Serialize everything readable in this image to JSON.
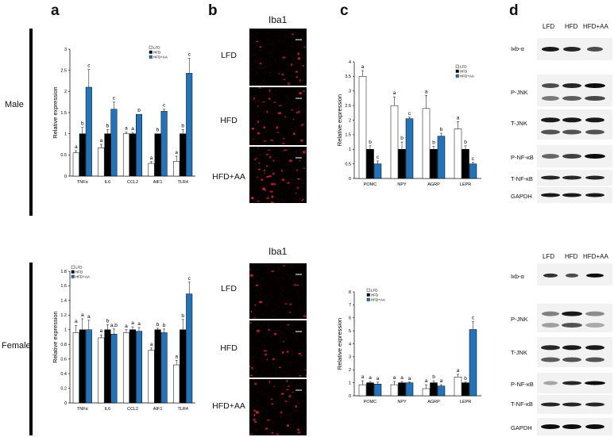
{
  "panels": {
    "a": "a",
    "b": "b",
    "c": "c",
    "d": "d"
  },
  "sex": {
    "male": "Male",
    "female": "Female"
  },
  "colors": {
    "LFD": "#ffffff",
    "HFD": "#000000",
    "HFD+AA": "#2473b8"
  },
  "legend": [
    "LFD",
    "HFD",
    "HFD+AA"
  ],
  "ylabel": "Relative expression",
  "iba": {
    "title": "Iba1",
    "conditions": [
      "LFD",
      "HFD",
      "HFD+AA"
    ]
  },
  "chart_data": [
    {
      "id": "a-male",
      "type": "bar",
      "ylabel": "Relative expression",
      "ylim": [
        0,
        3
      ],
      "yticks": [
        "0",
        "0.5",
        "1",
        "1.5",
        "2",
        "2.5",
        "3"
      ],
      "categories": [
        "TNFα",
        "IL6",
        "CCL2",
        "AIF1",
        "TLR4"
      ],
      "series": [
        {
          "name": "LFD",
          "values": [
            0.55,
            0.67,
            1.0,
            0.3,
            0.35
          ],
          "errors": [
            0.05,
            0.08,
            0.04,
            0.04,
            0.12
          ]
        },
        {
          "name": "HFD",
          "values": [
            1.0,
            1.0,
            1.0,
            1.0,
            1.0
          ],
          "errors": [
            0.15,
            0.1,
            0.03,
            0.0,
            0.1
          ]
        },
        {
          "name": "HFD+AA",
          "values": [
            2.1,
            1.58,
            1.46,
            1.53,
            2.43
          ],
          "errors": [
            0.42,
            0.17,
            0.0,
            0.05,
            0.35
          ]
        }
      ],
      "letters": [
        [
          "a",
          "b",
          "c"
        ],
        [
          "a",
          "b",
          "c"
        ],
        [
          "a",
          "a",
          "b"
        ],
        [
          "a",
          "b",
          "c"
        ],
        [
          "a",
          "b",
          "c"
        ]
      ],
      "legend_position": "top-right"
    },
    {
      "id": "a-female",
      "type": "bar",
      "ylabel": "Relative expression",
      "ylim": [
        0,
        1.8
      ],
      "yticks": [
        "0",
        "0.2",
        "0.4",
        "0.6",
        "0.8",
        "1",
        "1.2",
        "1.4",
        "1.6",
        "1.8"
      ],
      "categories": [
        "TNFα",
        "IL6",
        "CCL2",
        "AIF1",
        "TLR4"
      ],
      "series": [
        {
          "name": "LFD",
          "values": [
            0.96,
            0.89,
            0.96,
            0.72,
            0.52
          ],
          "errors": [
            0.1,
            0.04,
            0.04,
            0.03,
            0.06
          ]
        },
        {
          "name": "HFD",
          "values": [
            1.0,
            1.0,
            1.0,
            1.0,
            1.0
          ],
          "errors": [
            0.15,
            0.07,
            0.04,
            0.02,
            0.14
          ]
        },
        {
          "name": "HFD+AA",
          "values": [
            1.0,
            0.94,
            0.98,
            0.96,
            1.49
          ],
          "errors": [
            0.13,
            0.07,
            0.05,
            0.05,
            0.16
          ]
        }
      ],
      "letters": [
        [
          "a",
          "a",
          "a"
        ],
        [
          "a",
          "b",
          "a,b"
        ],
        [
          "a",
          "a",
          "a"
        ],
        [
          "a",
          "b",
          "b"
        ],
        [
          "a",
          "b",
          "c"
        ]
      ],
      "legend_position": "top-left"
    },
    {
      "id": "c-male",
      "type": "bar",
      "ylabel": "Relative expression",
      "ylim": [
        0,
        4
      ],
      "yticks": [
        "0",
        "0.5",
        "1",
        "1.5",
        "2",
        "2.5",
        "3",
        "3.5",
        "4"
      ],
      "categories": [
        "POMC",
        "NPY",
        "AGRP",
        "LEPR"
      ],
      "series": [
        {
          "name": "LFD",
          "values": [
            3.5,
            2.5,
            2.4,
            1.7
          ],
          "errors": [
            0.2,
            0.3,
            0.45,
            0.25
          ]
        },
        {
          "name": "HFD",
          "values": [
            1.0,
            1.0,
            1.0,
            1.0
          ],
          "errors": [
            0.12,
            0.25,
            0.1,
            0.12
          ]
        },
        {
          "name": "HFD+AA",
          "values": [
            0.5,
            2.05,
            1.45,
            0.5
          ],
          "errors": [
            0.1,
            0.05,
            0.1,
            0.05
          ]
        }
      ],
      "letters": [
        [
          "a",
          "b",
          "c"
        ],
        [
          "a",
          "b",
          "c"
        ],
        [
          "a",
          "b",
          "b"
        ],
        [
          "a",
          "b",
          "c"
        ]
      ],
      "legend_position": "top-right"
    },
    {
      "id": "c-female",
      "type": "bar",
      "ylabel": "Relative expression",
      "ylim": [
        0,
        8
      ],
      "yticks": [
        "0",
        "1",
        "2",
        "3",
        "4",
        "5",
        "6",
        "7",
        "8"
      ],
      "categories": [
        "POMC",
        "NPY",
        "AGRP",
        "LEPR"
      ],
      "series": [
        {
          "name": "LFD",
          "values": [
            0.85,
            0.85,
            0.55,
            1.45
          ],
          "errors": [
            0.3,
            0.25,
            0.3,
            0.2
          ]
        },
        {
          "name": "HFD",
          "values": [
            1.0,
            1.0,
            1.0,
            1.0
          ],
          "errors": [
            0.1,
            0.1,
            0.15,
            0.05
          ]
        },
        {
          "name": "HFD+AA",
          "values": [
            0.9,
            1.0,
            0.75,
            5.1
          ],
          "errors": [
            0.15,
            0.05,
            0.1,
            0.6
          ]
        }
      ],
      "letters": [
        [
          "a",
          "a",
          "a"
        ],
        [
          "a",
          "a",
          "a"
        ],
        [
          "a",
          "b",
          "a"
        ],
        [
          "a",
          "b",
          "c"
        ]
      ],
      "legend_position": "top-left"
    }
  ],
  "western_blot": {
    "columns": [
      "LFD",
      "HFD",
      "HFD+AA"
    ],
    "male_rows": [
      "Iκb-α",
      "P-JNK",
      "T-JNK",
      "P-NF-κB",
      "T-NF-κB",
      "GAPDH"
    ],
    "female_rows": [
      "Iκb-α",
      "P-JNK",
      "T-JNK",
      "P-NF-κB",
      "T-NF-κB",
      "GAPDH"
    ]
  }
}
